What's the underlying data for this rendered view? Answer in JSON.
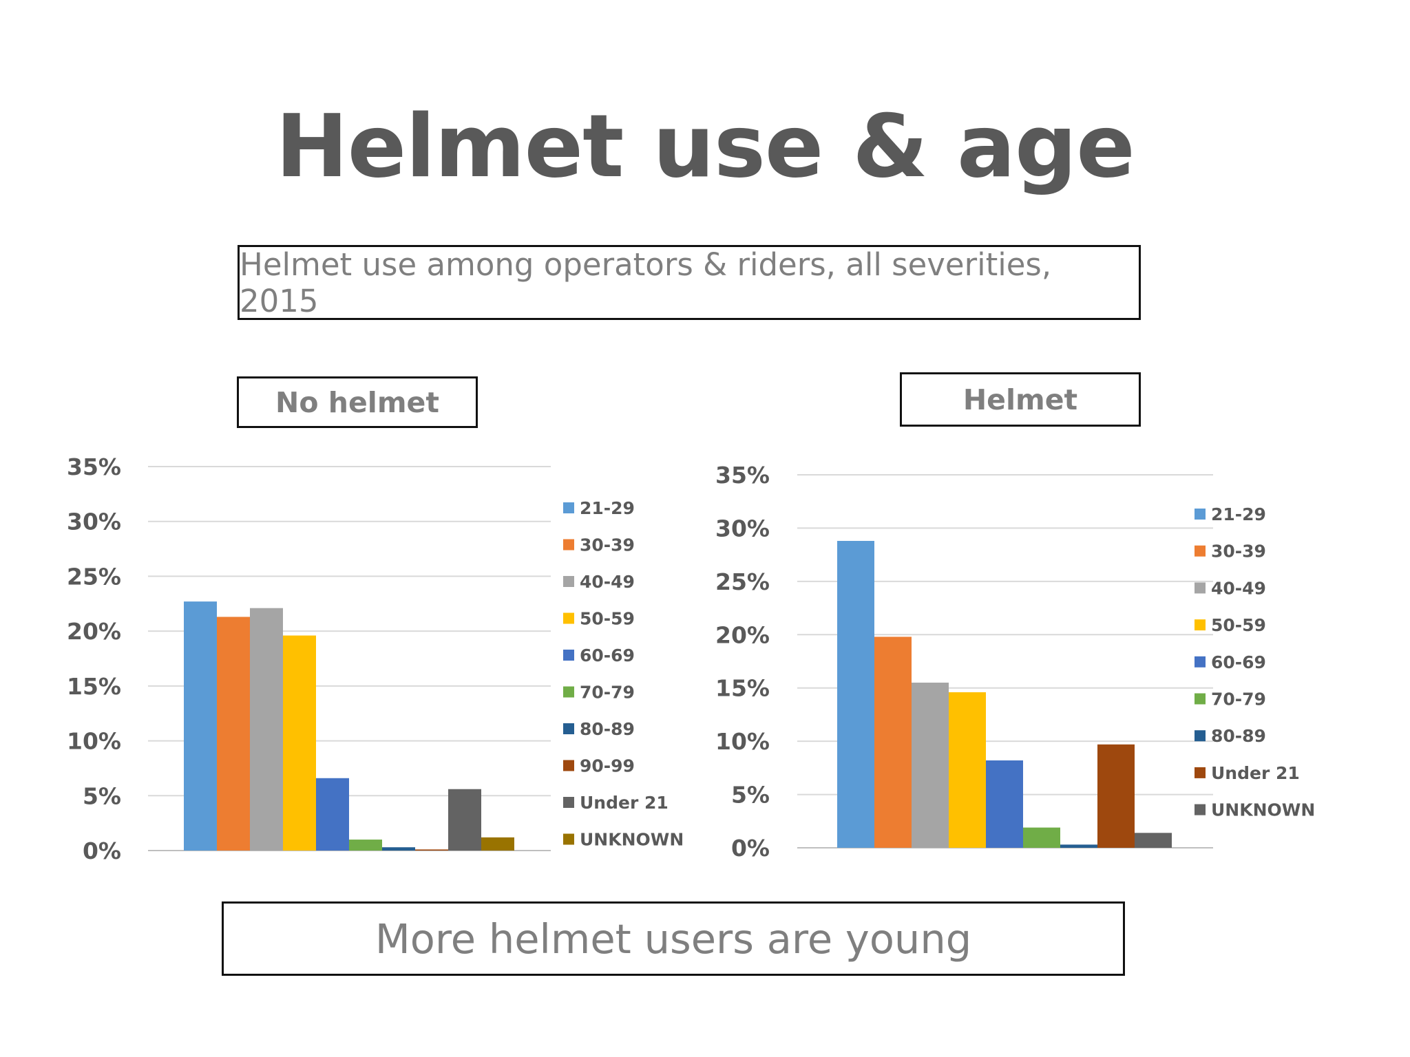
{
  "title": "Helmet use & age",
  "subtitle": "Helmet use among operators & riders, all severities, 2015",
  "conclusion": "More helmet users are young",
  "colors": {
    "21-29": "#5b9bd5",
    "30-39": "#ed7d31",
    "40-49": "#a5a5a5",
    "50-59": "#ffc000",
    "60-69": "#4472c4",
    "70-79": "#70ad47",
    "80-89": "#255e91",
    "90-99": "#9e480e",
    "Under 21": "#636363",
    "UNKNOWN": "#997300"
  },
  "chart_data": [
    {
      "type": "bar",
      "title": "No helmet",
      "yticks": [
        "0%",
        "5%",
        "10%",
        "15%",
        "20%",
        "25%",
        "30%",
        "35%"
      ],
      "ylim": [
        0,
        35
      ],
      "grid": true,
      "legend_position": "right",
      "series": [
        {
          "name": "21-29",
          "value": 22.7,
          "color": "#5b9bd5"
        },
        {
          "name": "30-39",
          "value": 21.3,
          "color": "#ed7d31"
        },
        {
          "name": "40-49",
          "value": 22.1,
          "color": "#a5a5a5"
        },
        {
          "name": "50-59",
          "value": 19.6,
          "color": "#ffc000"
        },
        {
          "name": "60-69",
          "value": 6.6,
          "color": "#4472c4"
        },
        {
          "name": "70-79",
          "value": 1.0,
          "color": "#70ad47"
        },
        {
          "name": "80-89",
          "value": 0.3,
          "color": "#255e91"
        },
        {
          "name": "90-99",
          "value": 0.1,
          "color": "#9e480e"
        },
        {
          "name": "Under 21",
          "value": 5.6,
          "color": "#636363"
        },
        {
          "name": "UNKNOWN",
          "value": 1.2,
          "color": "#997300"
        }
      ]
    },
    {
      "type": "bar",
      "title": "Helmet",
      "yticks": [
        "0%",
        "5%",
        "10%",
        "15%",
        "20%",
        "25%",
        "30%",
        "35%"
      ],
      "ylim": [
        0,
        35
      ],
      "grid": true,
      "legend_position": "right",
      "series": [
        {
          "name": "21-29",
          "value": 28.8,
          "color": "#5b9bd5"
        },
        {
          "name": "30-39",
          "value": 19.8,
          "color": "#ed7d31"
        },
        {
          "name": "40-49",
          "value": 15.5,
          "color": "#a5a5a5"
        },
        {
          "name": "50-59",
          "value": 14.6,
          "color": "#ffc000"
        },
        {
          "name": "60-69",
          "value": 8.2,
          "color": "#4472c4"
        },
        {
          "name": "70-79",
          "value": 1.9,
          "color": "#70ad47"
        },
        {
          "name": "80-89",
          "value": 0.3,
          "color": "#255e91"
        },
        {
          "name": "Under 21",
          "value": 9.7,
          "color": "#9e480e"
        },
        {
          "name": "UNKNOWN",
          "value": 1.4,
          "color": "#636363"
        }
      ]
    }
  ]
}
